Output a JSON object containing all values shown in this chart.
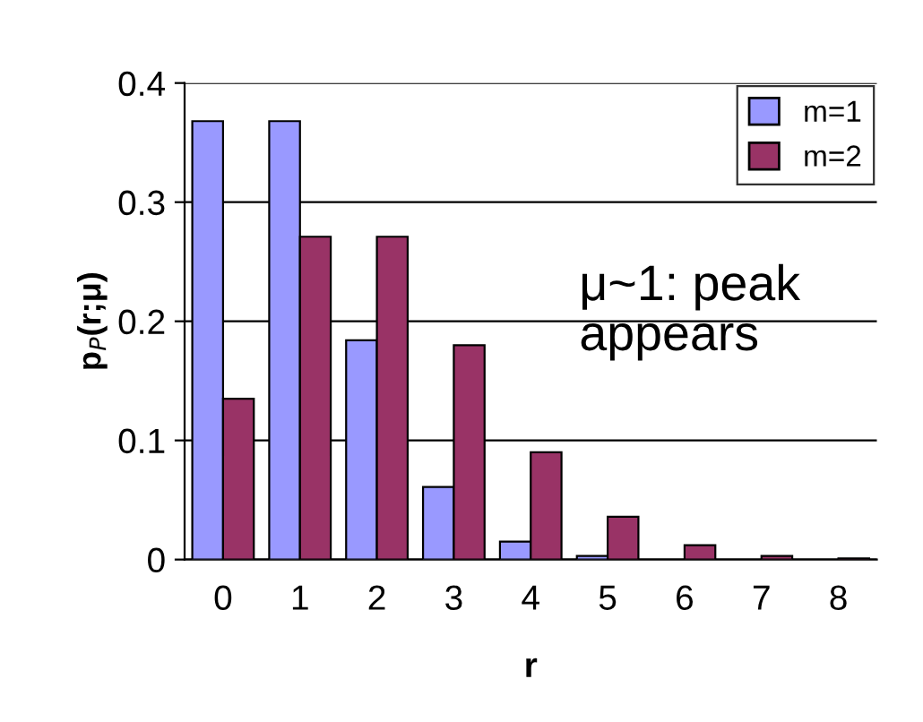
{
  "chart_data": {
    "type": "bar",
    "xlabel": "r",
    "ylabel": "p$_{P}$(r;μ)",
    "categories": [
      "0",
      "1",
      "2",
      "3",
      "4",
      "5",
      "6",
      "7",
      "8"
    ],
    "series": [
      {
        "name": "m=1",
        "color": "#9999ff",
        "values": [
          0.368,
          0.368,
          0.184,
          0.061,
          0.015,
          0.003,
          0.0,
          0.0,
          0.0
        ]
      },
      {
        "name": "m=2",
        "color": "#993366",
        "values": [
          0.135,
          0.271,
          0.271,
          0.18,
          0.09,
          0.036,
          0.012,
          0.003,
          0.001
        ]
      }
    ],
    "ylim": [
      0,
      0.4
    ],
    "yticks": [
      {
        "value": 0,
        "label": "0"
      },
      0.1,
      0.2,
      0.3,
      0.4
    ],
    "grid": "y",
    "legend": "top right",
    "annotations": [
      "μ~1: peak\nappears"
    ]
  }
}
